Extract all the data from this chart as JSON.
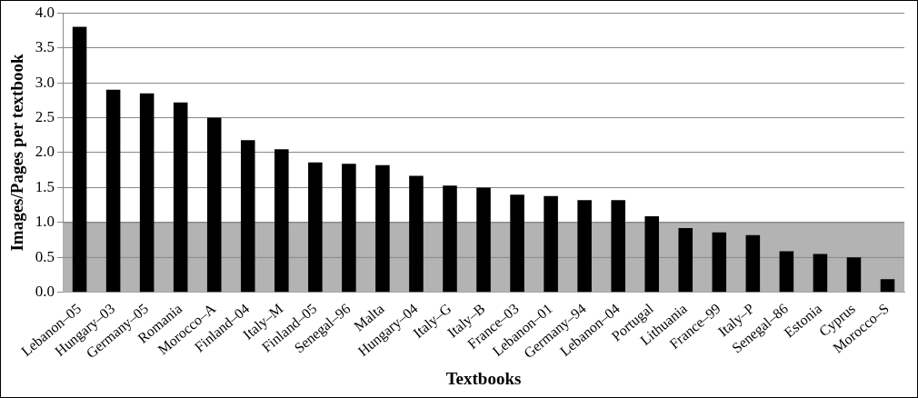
{
  "chart_data": {
    "type": "bar",
    "xlabel": "Textbooks",
    "ylabel": "Images/Pages per textbook",
    "categories": [
      "Lebanon–05",
      "Hungary–03",
      "Germany–05",
      "Romania",
      "Morocco–A",
      "Finland–04",
      "Italy–M",
      "Finland–05",
      "Senegal–96",
      "Malta",
      "Hungary–04",
      "Italy–G",
      "Italy–B",
      "France–03",
      "Lebanon–01",
      "Germany–94",
      "Lebanon–04",
      "Portugal",
      "Lithuania",
      "France–99",
      "Italy–P",
      "Senegal–86",
      "Estonia",
      "Cyprus",
      "Morocco–S"
    ],
    "values": [
      3.8,
      2.9,
      2.85,
      2.72,
      2.5,
      2.18,
      2.05,
      1.86,
      1.84,
      1.82,
      1.67,
      1.53,
      1.5,
      1.4,
      1.38,
      1.32,
      1.32,
      1.09,
      0.92,
      0.86,
      0.82,
      0.59,
      0.55,
      0.5,
      0.19
    ],
    "color": "#000000",
    "ylim": [
      0,
      4
    ],
    "yticks": [
      {
        "value": 0,
        "label": "0.0"
      },
      {
        "value": 0.5,
        "label": "0.5"
      },
      {
        "value": 1,
        "label": "1.0"
      },
      {
        "value": 1.5,
        "label": "1.5"
      },
      {
        "value": 2,
        "label": "2.0"
      },
      {
        "value": 2.5,
        "label": "2.5"
      },
      {
        "value": 3,
        "label": "3.0"
      },
      {
        "value": 3.5,
        "label": "3.5"
      },
      {
        "value": 4,
        "label": "4.0"
      }
    ],
    "grid": "y",
    "bands": [
      {
        "axis": "y",
        "from": 0,
        "to": 1,
        "color": "#b3b3b3"
      }
    ]
  }
}
